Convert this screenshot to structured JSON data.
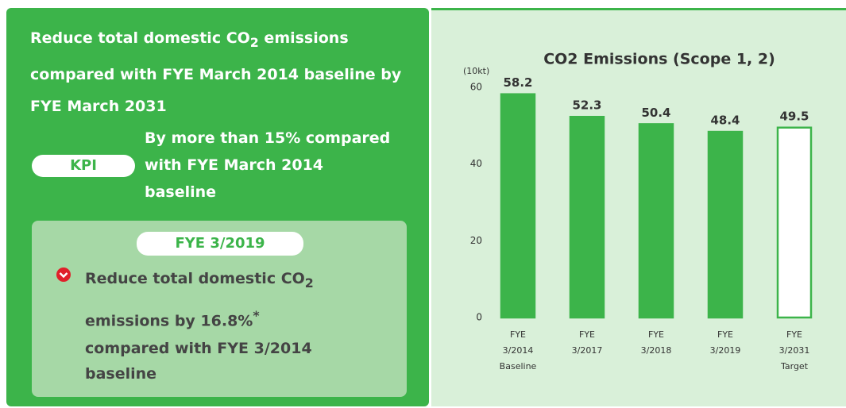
{
  "goal": {
    "text": "Reduce total domestic CO",
    "subscript": "2",
    "text_after": " emissions compared with FYE March 2014 baseline by FYE March 2031"
  },
  "kpi": {
    "badge": "KPI",
    "text": "By more than 15% compared with FYE March 2014 baseline"
  },
  "result": {
    "badge": "FYE 3/2019",
    "line1": "Reduce total domestic CO",
    "line1_subscript": "2",
    "line2": "emissions by 16.8%",
    "line2_superscript": "*",
    "line3": "compared with FYE 3/2014",
    "line4": "baseline"
  },
  "chart_data": {
    "type": "bar",
    "title": "CO2 Emissions (Scope 1, 2)",
    "y_label": "(10kt)",
    "categories": [
      [
        "FYE",
        "3/2014",
        "Baseline"
      ],
      [
        "FYE",
        "3/2017"
      ],
      [
        "FYE",
        "3/2018"
      ],
      [
        "FYE",
        "3/2019"
      ],
      [
        "FYE",
        "3/2031",
        "Target"
      ]
    ],
    "values": [
      58.2,
      52.3,
      50.4,
      48.4,
      49.5
    ],
    "colors": [
      "#3cb44a",
      "#3cb44a",
      "#3cb44a",
      "#3cb44a",
      "#ffffff"
    ],
    "ylim": [
      0,
      60
    ],
    "yticks": [
      0,
      20,
      40,
      60
    ],
    "grid": false
  }
}
